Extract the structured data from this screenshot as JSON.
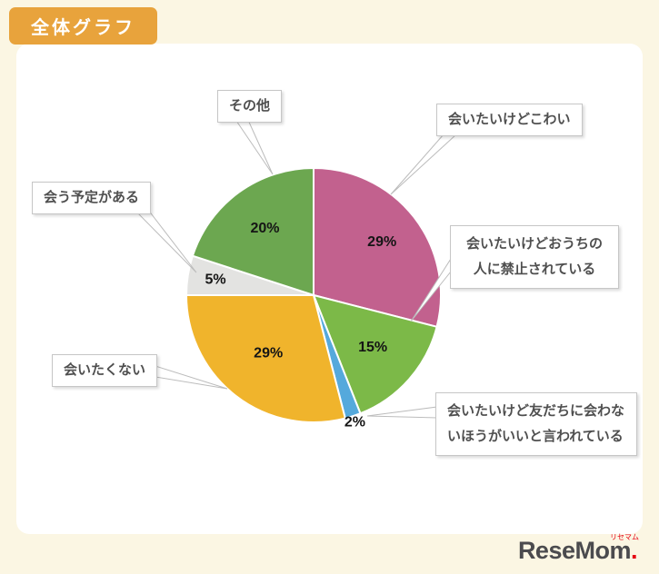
{
  "header": {
    "title": "全体グラフ"
  },
  "chart_data": {
    "type": "pie",
    "title": "全体グラフ",
    "start_angle_deg": 0,
    "direction": "clockwise",
    "value_suffix": "%",
    "legend_position": "callout-labels",
    "slices": [
      {
        "name": "会いたいけどこわい",
        "value": 29,
        "color": "#C2618E",
        "label_r": 0.68
      },
      {
        "name": "会いたいけどおうちの人に禁止されている",
        "value": 15,
        "color": "#7CB948",
        "label_r": 0.62
      },
      {
        "name": "会いたいけど友だちに会わないほうがいいと言われている",
        "value": 2,
        "color": "#55A9DC",
        "label_r": 1.05
      },
      {
        "name": "会いたくない",
        "value": 29,
        "color": "#F0B42C",
        "label_r": 0.58
      },
      {
        "name": "会う予定がある",
        "value": 5,
        "color": "#E3E3E1",
        "label_r": 0.78
      },
      {
        "name": "その他",
        "value": 20,
        "color": "#6CA750",
        "label_r": 0.65
      }
    ]
  },
  "logo": {
    "text": "ReseMom",
    "dot": ".",
    "sub": "リセマム"
  }
}
